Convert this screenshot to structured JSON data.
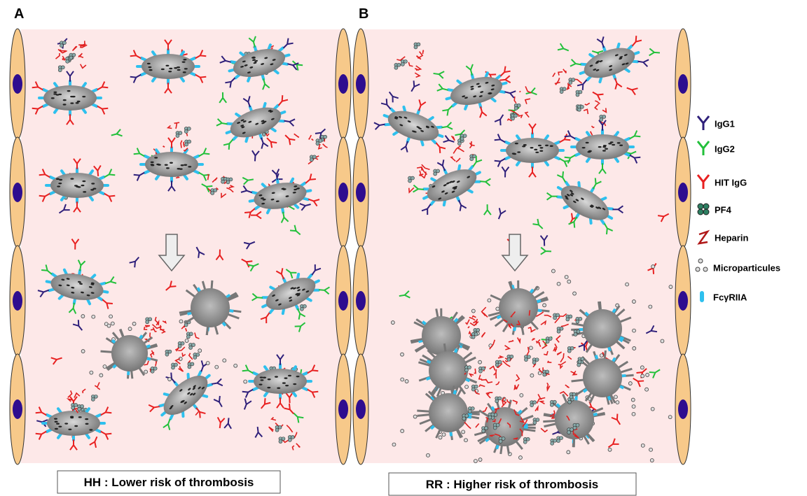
{
  "panels": [
    {
      "label": "A",
      "caption": "HH : Lower risk of thrombosis"
    },
    {
      "label": "B",
      "caption": "RR : Higher risk of thrombosis"
    }
  ],
  "legend": [
    {
      "label": "IgG1"
    },
    {
      "label": "IgG2"
    },
    {
      "label": "HIT IgG"
    },
    {
      "label": "PF4"
    },
    {
      "label": "Heparin"
    },
    {
      "label": "Microparticules"
    },
    {
      "label": "FcγRIIA"
    }
  ]
}
